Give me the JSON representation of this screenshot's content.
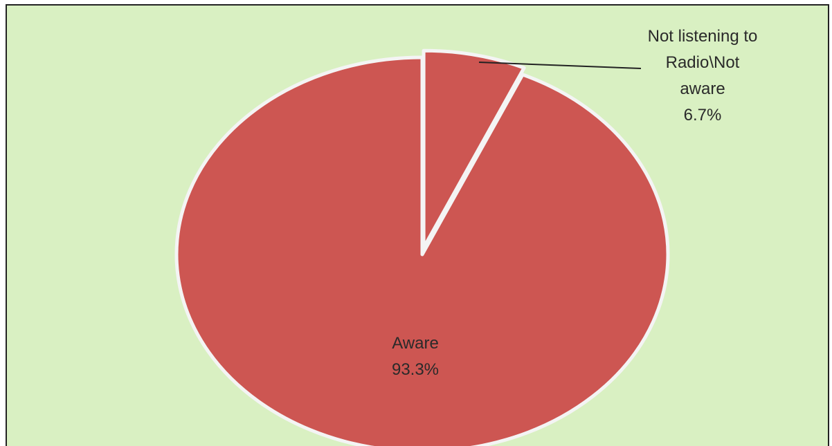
{
  "chart_data": {
    "type": "pie",
    "categories": [
      "Not listening to Radio\\Not aware",
      "Aware"
    ],
    "values": [
      6.7,
      93.3
    ],
    "value_labels": [
      "6.7%",
      "93.3%"
    ],
    "color": "#cd5652"
  }
}
